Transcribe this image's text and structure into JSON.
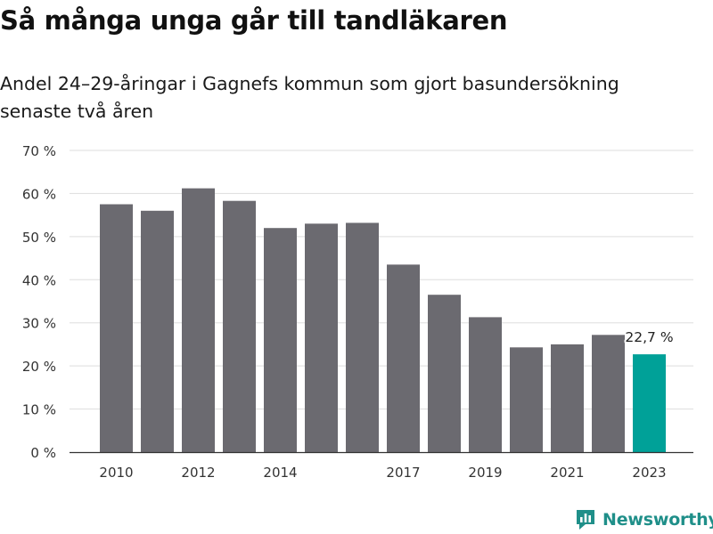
{
  "header": {
    "title": "Så många unga går till tandläkaren",
    "subtitle": "Andel 24–29-åringar i Gagnefs kommun som gjort basundersökning senaste två åren"
  },
  "brand": {
    "name": "Newsworthy",
    "logo_icon": "newsworthy-chart-logo-icon",
    "color": "#1f8f89"
  },
  "colors": {
    "bar": "#6b6a70",
    "highlight": "#00a198",
    "grid": "#dddddd",
    "axis": "#333333",
    "text": "#333333"
  },
  "chart_data": {
    "type": "bar",
    "categories": [
      "2010",
      "2011",
      "2012",
      "2013",
      "2014",
      "2015",
      "2016",
      "2017",
      "2018",
      "2019",
      "2020",
      "2021",
      "2022",
      "2023"
    ],
    "values": [
      57.5,
      56,
      61.2,
      58.3,
      52,
      53,
      53.2,
      43.5,
      36.5,
      31.3,
      24.3,
      25,
      27.2,
      22.7
    ],
    "highlight_index": 13,
    "x_tick_labels": [
      "2010",
      "2012",
      "2014",
      "2017",
      "2019",
      "2021",
      "2023"
    ],
    "y_ticks": [
      0,
      10,
      20,
      30,
      40,
      50,
      60,
      70
    ],
    "y_unit_suffix": " %",
    "ylim": [
      0,
      70
    ],
    "grid": true,
    "annotation": {
      "index": 13,
      "text": "22,7 %"
    }
  }
}
